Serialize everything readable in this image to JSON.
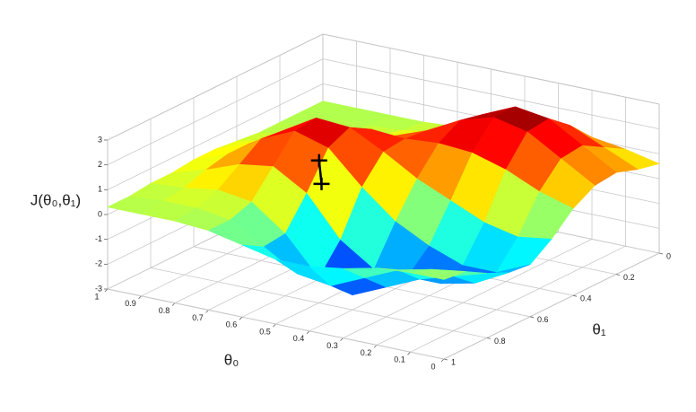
{
  "chart_data": {
    "type": "surface",
    "x_label": "θ₀",
    "y_label": "θ₁",
    "z_label": "J(θ₀,θ₁)",
    "x": [
      0,
      0.1,
      0.2,
      0.3,
      0.4,
      0.5,
      0.6,
      0.7,
      0.8,
      0.9,
      1
    ],
    "y": [
      0,
      0.1,
      0.2,
      0.3,
      0.4,
      0.5,
      0.6,
      0.7,
      0.8,
      0.9,
      1
    ],
    "z": [
      [
        0.6,
        0.8,
        1.1,
        1.0,
        0.5,
        -0.3,
        -0.9,
        -0.8,
        -0.4,
        0.1,
        0.2
      ],
      [
        0.9,
        1.4,
        1.9,
        1.8,
        0.9,
        -0.5,
        -1.5,
        -1.5,
        -0.8,
        -0.1,
        0.2
      ],
      [
        1.1,
        2.0,
        2.7,
        2.6,
        1.5,
        -0.2,
        -1.5,
        -1.8,
        -1.2,
        -0.4,
        0.1
      ],
      [
        1.2,
        2.1,
        2.9,
        2.9,
        1.9,
        0.4,
        -1.0,
        -1.8,
        -1.8,
        -1.0,
        -0.2
      ],
      [
        1.0,
        1.7,
        2.3,
        2.5,
        2.0,
        1.0,
        -0.3,
        -1.8,
        -2.4,
        -1.6,
        -0.4
      ],
      [
        0.7,
        1.1,
        1.5,
        1.8,
        1.9,
        1.8,
        0.8,
        -0.9,
        -2.0,
        -1.4,
        -0.4
      ],
      [
        0.4,
        0.6,
        0.9,
        1.3,
        2.0,
        2.5,
        2.1,
        0.7,
        -0.5,
        -0.6,
        -0.1
      ],
      [
        0.3,
        0.4,
        0.6,
        1.0,
        1.8,
        2.6,
        2.5,
        1.5,
        0.5,
        0.2,
        0.2
      ],
      [
        0.3,
        0.3,
        0.4,
        0.7,
        1.3,
        1.8,
        1.9,
        1.3,
        0.7,
        0.4,
        0.3
      ],
      [
        0.3,
        0.3,
        0.3,
        0.5,
        0.7,
        1.0,
        1.0,
        0.8,
        0.5,
        0.4,
        0.3
      ],
      [
        0.3,
        0.3,
        0.3,
        0.3,
        0.4,
        0.5,
        0.5,
        0.4,
        0.4,
        0.3,
        0.3
      ]
    ],
    "xlim": [
      0,
      1
    ],
    "ylim": [
      0,
      1
    ],
    "zlim": [
      -3,
      3
    ],
    "xticks": [
      0,
      0.1,
      0.2,
      0.3,
      0.4,
      0.5,
      0.6,
      0.7,
      0.8,
      0.9,
      1
    ],
    "yticks": [
      0,
      0.2,
      0.4,
      0.6,
      0.8,
      1
    ],
    "zticks": [
      -3,
      -2,
      -1,
      0,
      1,
      2,
      3
    ],
    "colormap": "jet",
    "grid": true,
    "path": {
      "color": "#000000",
      "x": [
        0.64,
        0.62
      ],
      "y": [
        0.58,
        0.6
      ],
      "z": [
        1.4,
        0.6
      ]
    }
  }
}
